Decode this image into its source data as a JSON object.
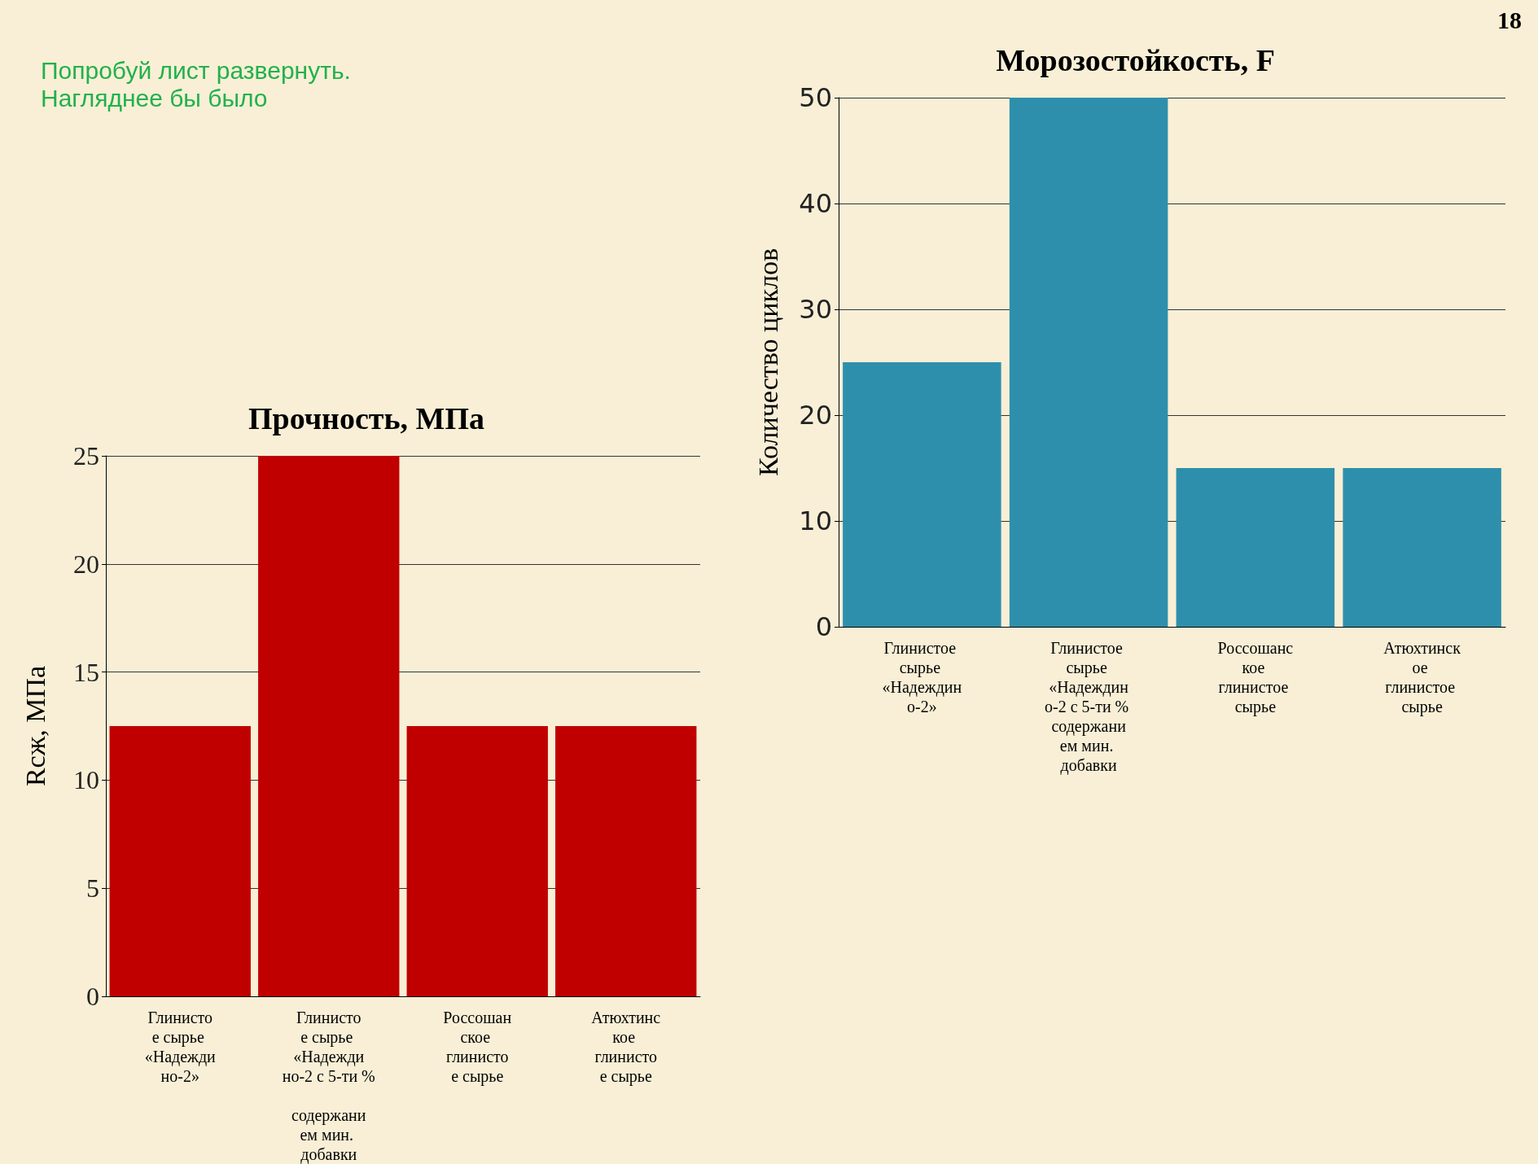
{
  "chart_data": [
    {
      "type": "bar",
      "title": "Морозостойкость, F",
      "ylabel": "Количество циклов",
      "categories": [
        "Глинистое сырье «Надеждино-2»",
        "Глинистое сырье «Надеждино-2 с 5-ти % содержанием мин. добавки",
        "Россошанское глинистое сырье",
        "Атюхтинское глинистое сырье"
      ],
      "values": [
        25,
        50,
        15,
        15
      ],
      "color": "#2e8fac",
      "ylim": [
        0,
        50
      ],
      "yticks": [
        0,
        10,
        20,
        30,
        40,
        50
      ],
      "grid": "y",
      "annotations": [
        "Попробуй лист развернуть. Нагляднее бы было",
        "18"
      ]
    },
    {
      "type": "bar",
      "title": "Прочность, МПа",
      "ylabel": "Rсж, МПа",
      "categories": [
        "Глинистое сырье «Надеждино-2»",
        "Глинистое сырье «Надеждино-2 с 5-ти % содержанием мин. добавки",
        "Россошанское глинистое сырье",
        "Атюхтинское глинистое сырье"
      ],
      "values": [
        12.5,
        25,
        12.5,
        12.5
      ],
      "color": "#c00000",
      "ylim": [
        0,
        25
      ],
      "yticks": [
        0,
        5,
        10,
        15,
        20,
        25
      ],
      "grid": "y"
    }
  ]
}
